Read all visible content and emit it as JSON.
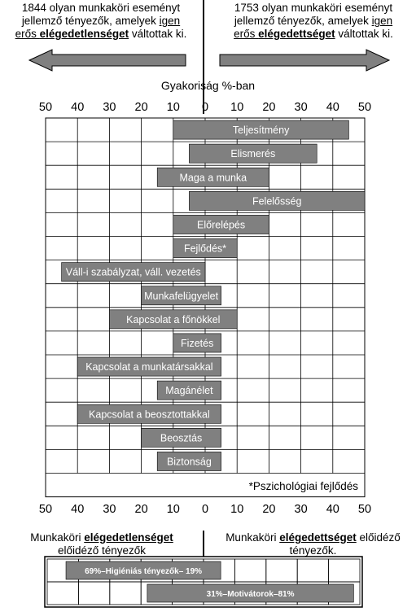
{
  "header": {
    "left": {
      "line1": "1844 olyan munkaköri eseményt",
      "line2a": "jellemző tényezők, amelyek ",
      "line2b": "igen",
      "line3a": "erős ",
      "line3b": "elégedetlenséget",
      "line3c": " váltottak ki."
    },
    "right": {
      "line1": "1753 olyan munkaköri eseményt",
      "line2a": "jellemző tényezők, amelyek ",
      "line2b": "igen",
      "line3a": "erős ",
      "line3b": "elégedettséget",
      "line3c": " váltottak ki."
    }
  },
  "frequency_title": "Gyakoriság  %-ban",
  "footnote": "*Pszichológiai fejlődés",
  "bottom": {
    "left": {
      "line1a": "Munkaköri  ",
      "line1b": "elégedetlenséget",
      "line2": "előidéző  tényezők"
    },
    "right": {
      "line1a": "Munkaköri  ",
      "line1b": "elégedettséget",
      "line1c": " előidéző",
      "line2": "tényezők."
    },
    "hygiene_label": "69%–Higiéniás tényezők– 19%",
    "motivator_label": "31%–Motivátorok–81%"
  },
  "chart_data": {
    "type": "bar",
    "xlabel": "Gyakoriság  %-ban",
    "xlim": [
      -50,
      50
    ],
    "tick_labels": [
      "50",
      "40",
      "30",
      "20",
      "10",
      "0",
      "10",
      "20",
      "30",
      "40",
      "50"
    ],
    "grid": true,
    "series": [
      {
        "name": "elégedetlenséget",
        "values": [
          10,
          5,
          15,
          5,
          10,
          10,
          45,
          20,
          30,
          10,
          40,
          15,
          40,
          20,
          15
        ]
      },
      {
        "name": "elégedettséget",
        "values": [
          45,
          35,
          20,
          50,
          20,
          10,
          0,
          5,
          10,
          5,
          5,
          5,
          5,
          5,
          5
        ]
      }
    ],
    "categories": [
      "Teljesítmény",
      "Elismerés",
      "Maga a munka",
      "Felelősség",
      "Előrelépés",
      "Fejlődés*",
      "Váll-i szabályzat, váll. vezetés",
      "Munkafelügyelet",
      "Kapcsolat a főnökkel",
      "Fizetés",
      "Kapcsolat a munkatársakkal",
      "Magánélet",
      "Kapcsolat a beosztottakkal",
      "Beosztás",
      "Biztonság"
    ],
    "summary": {
      "hygiene": {
        "dissatisfaction": 69,
        "satisfaction": 19
      },
      "motivators": {
        "dissatisfaction": 31,
        "satisfaction": 81
      }
    }
  },
  "colors": {
    "bar": "#808080",
    "arrow": "#808080",
    "grid": "#000000"
  }
}
